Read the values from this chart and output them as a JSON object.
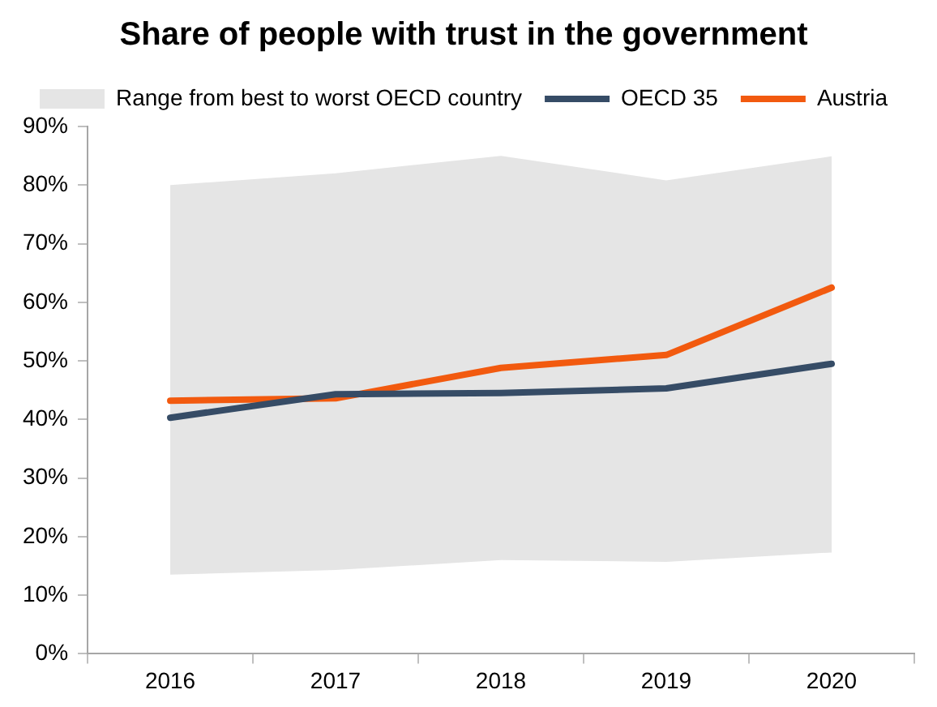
{
  "chart_data": {
    "type": "line",
    "title": "Share of people with trust in the government",
    "categories": [
      "2016",
      "2017",
      "2018",
      "2019",
      "2020"
    ],
    "series": [
      {
        "name": "Range from best to worst OECD country",
        "type": "area",
        "color": "#e5e5e5",
        "values": [
          null,
          null,
          null,
          null,
          null
        ],
        "lower": [
          13.5,
          14.3,
          16,
          15.7,
          17.3
        ],
        "upper": [
          80,
          82,
          85,
          80.8,
          84.9
        ]
      },
      {
        "name": "OECD 35",
        "color": "#364c66",
        "values": [
          40.3,
          44.3,
          44.5,
          45.3,
          49.5
        ]
      },
      {
        "name": "Austria",
        "color": "#f25a0f",
        "values": [
          43.2,
          43.6,
          48.8,
          51,
          62.5
        ]
      }
    ],
    "ylim": [
      0,
      90
    ],
    "yticks": [
      {
        "value": 0,
        "label": "0%"
      },
      {
        "value": 10,
        "label": "10%"
      },
      {
        "value": 20,
        "label": "20%"
      },
      {
        "value": 30,
        "label": "30%"
      },
      {
        "value": 40,
        "label": "40%"
      },
      {
        "value": 50,
        "label": "50%"
      },
      {
        "value": 60,
        "label": "60%"
      },
      {
        "value": 70,
        "label": "70%"
      },
      {
        "value": 80,
        "label": "80%"
      },
      {
        "value": 90,
        "label": "90%"
      }
    ],
    "grid": false,
    "legend": "top",
    "marker": "none",
    "line_style": "solid"
  }
}
